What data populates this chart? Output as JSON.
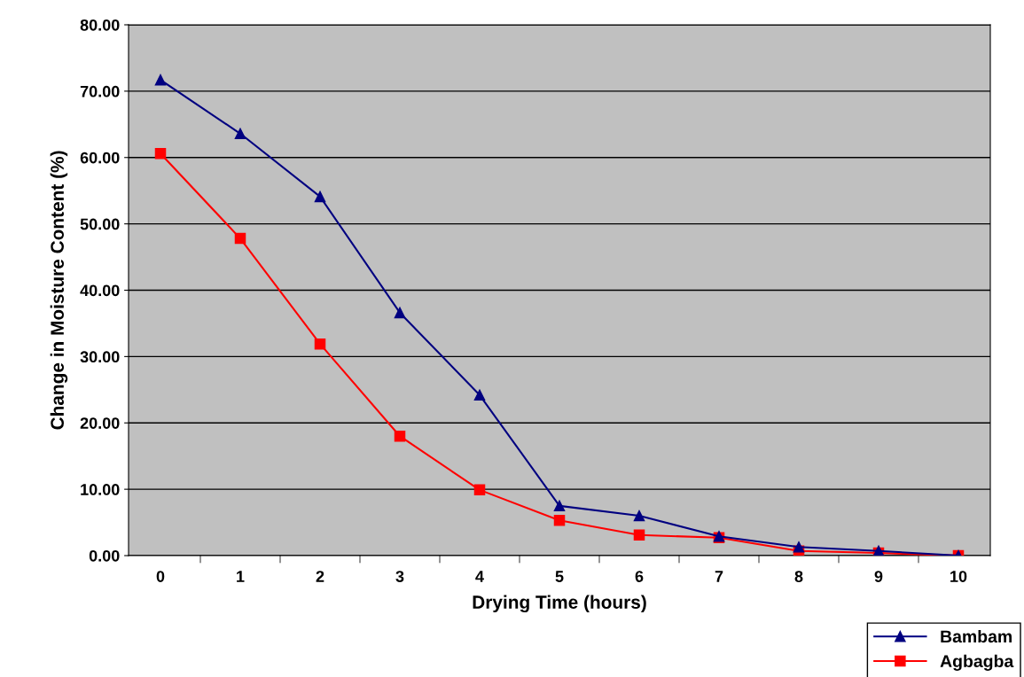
{
  "chart_data": {
    "type": "line",
    "xlabel": "Drying Time (hours)",
    "ylabel": "Change in Moisture Content (%)",
    "categories": [
      "0",
      "1",
      "2",
      "3",
      "4",
      "5",
      "6",
      "7",
      "8",
      "9",
      "10"
    ],
    "series": [
      {
        "name": "Bambam",
        "color": "#000080",
        "marker": "triangle",
        "values": [
          71.7,
          63.6,
          54.1,
          36.6,
          24.2,
          7.5,
          6.0,
          2.9,
          1.3,
          0.7,
          0.0
        ]
      },
      {
        "name": "Agbagba",
        "color": "#ff0000",
        "marker": "square",
        "values": [
          60.6,
          47.8,
          31.9,
          18.0,
          9.9,
          5.3,
          3.1,
          2.7,
          0.7,
          0.4,
          0.0
        ]
      }
    ],
    "ylim": [
      0,
      80
    ],
    "yticks": [
      {
        "value": 0,
        "label": "0.00"
      },
      {
        "value": 10,
        "label": "10.00"
      },
      {
        "value": 20,
        "label": "20.00"
      },
      {
        "value": 30,
        "label": "30.00"
      },
      {
        "value": 40,
        "label": "40.00"
      },
      {
        "value": 50,
        "label": "50.00"
      },
      {
        "value": 60,
        "label": "60.00"
      },
      {
        "value": 70,
        "label": "70.00"
      },
      {
        "value": 80,
        "label": "80.00"
      }
    ],
    "grid": "y",
    "legend": "bottom right",
    "line_style": "solid"
  }
}
